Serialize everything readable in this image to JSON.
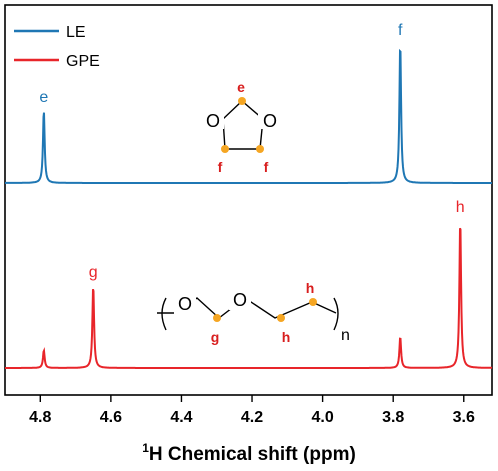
{
  "chart_data": {
    "type": "line",
    "xlabel_sup": "1",
    "xlabel_main": "H Chemical shift (ppm)",
    "xlim": [
      4.9,
      3.52
    ],
    "xaxis_reversed": true,
    "xticks": [
      4.8,
      4.6,
      4.4,
      4.2,
      4.0,
      3.8,
      3.6
    ],
    "xtick_labels": [
      "4.8",
      "4.6",
      "4.4",
      "4.2",
      "4.0",
      "3.8",
      "3.6"
    ],
    "legend": {
      "placement": "top-left",
      "entries": [
        "LE",
        "GPE"
      ]
    },
    "series": [
      {
        "name": "LE",
        "color": "#1f77b4",
        "panel": "top",
        "peaks": [
          {
            "x": 4.79,
            "intensity": 0.52,
            "label": "e"
          },
          {
            "x": 3.78,
            "intensity": 1.0,
            "label": "f"
          }
        ]
      },
      {
        "name": "GPE",
        "color": "#e8252a",
        "panel": "bottom",
        "peaks": [
          {
            "x": 4.79,
            "intensity": 0.12,
            "label": ""
          },
          {
            "x": 4.65,
            "intensity": 0.56,
            "label": "g"
          },
          {
            "x": 3.78,
            "intensity": 0.21,
            "label": ""
          },
          {
            "x": 3.61,
            "intensity": 1.0,
            "label": "h"
          }
        ]
      }
    ],
    "annotations": {
      "molecule_top": {
        "o1": "O",
        "o2": "O",
        "e": "e",
        "f1": "f",
        "f2": "f"
      },
      "molecule_bottom": {
        "o1": "O",
        "o2": "O",
        "g": "g",
        "h1": "h",
        "h2": "h",
        "n": "n"
      }
    },
    "colors": {
      "le": "#1f77b4",
      "gpe": "#e8252a",
      "dot": "#f5a623",
      "annot_red": "#d81e1e"
    }
  }
}
